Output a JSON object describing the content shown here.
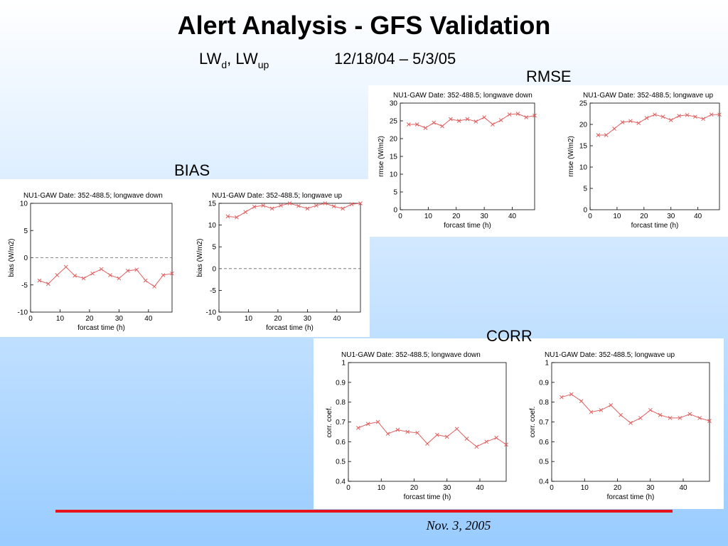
{
  "title": "Alert Analysis - GFS Validation",
  "subtitle": {
    "parts": [
      "LW",
      "d",
      ", LW",
      "up"
    ],
    "period": "12/18/04 – 5/3/05"
  },
  "sections": {
    "rmse": "RMSE",
    "bias": "BIAS",
    "corr": "CORR"
  },
  "footer": "Nov. 3, 2005",
  "chart_data": [
    {
      "type": "line",
      "title": "NU1-GAW  Date: 352-488.5;  longwave down",
      "xlabel": "forcast time (h)",
      "ylabel": "rmse (W/m2)",
      "x": [
        3,
        6,
        9,
        12,
        15,
        18,
        21,
        24,
        27,
        30,
        33,
        36,
        39,
        42,
        45,
        48
      ],
      "xlim": [
        0,
        48
      ],
      "xticks": [
        0,
        10,
        20,
        30,
        40
      ],
      "ylim": [
        0,
        30
      ],
      "yticks": [
        0,
        5,
        10,
        15,
        20,
        25,
        30
      ],
      "series": [
        {
          "color": "#e06060",
          "values": [
            24,
            24,
            23,
            24.5,
            23.5,
            25.5,
            25,
            25.5,
            24.8,
            26,
            24,
            25.2,
            26.8,
            27,
            26,
            26.5
          ]
        }
      ]
    },
    {
      "type": "line",
      "title": "NU1-GAW  Date: 352-488.5;  longwave up",
      "xlabel": "forcast time (h)",
      "ylabel": "rmse (W/m2)",
      "x": [
        3,
        6,
        9,
        12,
        15,
        18,
        21,
        24,
        27,
        30,
        33,
        36,
        39,
        42,
        45,
        48
      ],
      "xlim": [
        0,
        48
      ],
      "xticks": [
        0,
        10,
        20,
        30,
        40
      ],
      "ylim": [
        0,
        25
      ],
      "yticks": [
        0,
        5,
        10,
        15,
        20,
        25
      ],
      "series": [
        {
          "color": "#e06060",
          "values": [
            17.5,
            17.5,
            19,
            20.5,
            20.8,
            20.3,
            21.5,
            22.3,
            21.8,
            21,
            22,
            22.2,
            21.8,
            21.3,
            22.3,
            22.3
          ]
        }
      ]
    },
    {
      "type": "line",
      "title": "NU1-GAW  Date: 352-488.5;  longwave down",
      "xlabel": "forcast time (h)",
      "ylabel": "bias (W/m2)",
      "x": [
        3,
        6,
        9,
        12,
        15,
        18,
        21,
        24,
        27,
        30,
        33,
        36,
        39,
        42,
        45,
        48
      ],
      "xlim": [
        0,
        48
      ],
      "xticks": [
        0,
        10,
        20,
        30,
        40
      ],
      "ylim": [
        -10,
        10
      ],
      "yticks": [
        -10,
        -5,
        0,
        5,
        10
      ],
      "hline": 0,
      "series": [
        {
          "color": "#e06060",
          "values": [
            -4.2,
            -4.8,
            -3.2,
            -1.7,
            -3.3,
            -3.8,
            -2.9,
            -2.1,
            -3.2,
            -3.8,
            -2.4,
            -2.2,
            -4.2,
            -5.3,
            -3.2,
            -2.9
          ]
        }
      ]
    },
    {
      "type": "line",
      "title": "NU1-GAW  Date: 352-488.5;  longwave up",
      "xlabel": "forcast time (h)",
      "ylabel": "bias (W/m2)",
      "x": [
        3,
        6,
        9,
        12,
        15,
        18,
        21,
        24,
        27,
        30,
        33,
        36,
        39,
        42,
        45,
        48
      ],
      "xlim": [
        0,
        48
      ],
      "xticks": [
        0,
        10,
        20,
        30,
        40
      ],
      "ylim": [
        -10,
        15
      ],
      "yticks": [
        -10,
        -5,
        0,
        5,
        10,
        15
      ],
      "hline": 0,
      "series": [
        {
          "color": "#e06060",
          "values": [
            12,
            11.8,
            13,
            14.2,
            14.5,
            13.8,
            14.5,
            15,
            14.4,
            13.8,
            14.5,
            15,
            14.3,
            13.8,
            14.8,
            15
          ]
        }
      ]
    },
    {
      "type": "line",
      "title": "NU1-GAW  Date: 352-488.5;  longwave down",
      "xlabel": "forcast time (h)",
      "ylabel": "corr. coef.",
      "x": [
        3,
        6,
        9,
        12,
        15,
        18,
        21,
        24,
        27,
        30,
        33,
        36,
        39,
        42,
        45,
        48
      ],
      "xlim": [
        0,
        48
      ],
      "xticks": [
        0,
        10,
        20,
        30,
        40
      ],
      "ylim": [
        0.4,
        1
      ],
      "yticks": [
        0.4,
        0.5,
        0.6,
        0.7,
        0.8,
        0.9,
        1
      ],
      "series": [
        {
          "color": "#e06060",
          "values": [
            0.67,
            0.69,
            0.7,
            0.64,
            0.66,
            0.65,
            0.645,
            0.59,
            0.635,
            0.625,
            0.665,
            0.615,
            0.575,
            0.6,
            0.62,
            0.585
          ]
        }
      ]
    },
    {
      "type": "line",
      "title": "NU1-GAW  Date: 352-488.5;  longwave up",
      "xlabel": "forcast time (h)",
      "ylabel": "corr. coef.",
      "x": [
        3,
        6,
        9,
        12,
        15,
        18,
        21,
        24,
        27,
        30,
        33,
        36,
        39,
        42,
        45,
        48
      ],
      "xlim": [
        0,
        48
      ],
      "xticks": [
        0,
        10,
        20,
        30,
        40
      ],
      "ylim": [
        0.4,
        1
      ],
      "yticks": [
        0.4,
        0.5,
        0.6,
        0.7,
        0.8,
        0.9,
        1
      ],
      "series": [
        {
          "color": "#e06060",
          "values": [
            0.825,
            0.84,
            0.805,
            0.75,
            0.76,
            0.785,
            0.735,
            0.695,
            0.72,
            0.76,
            0.735,
            0.72,
            0.72,
            0.74,
            0.72,
            0.705
          ]
        }
      ]
    }
  ]
}
